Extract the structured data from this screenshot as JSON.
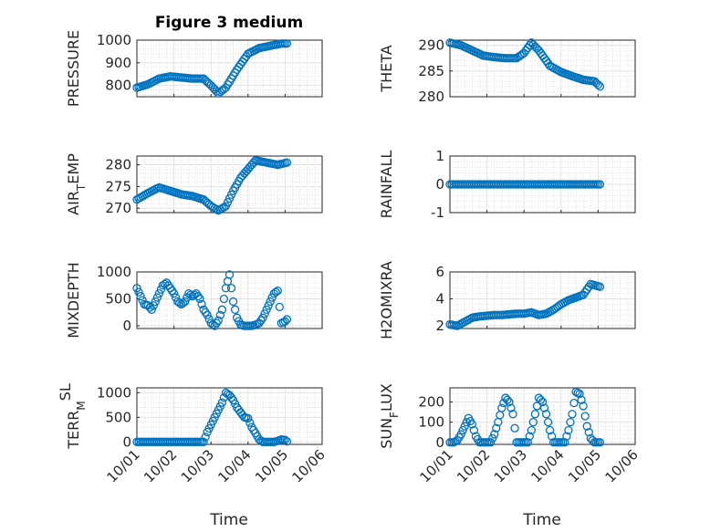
{
  "figure": {
    "title": "Figure 3 medium",
    "xlabel": "Time",
    "x_tick_labels": [
      "10/01",
      "10/02",
      "10/03",
      "10/04",
      "10/05",
      "10/06"
    ],
    "marker_color": "#0072BD",
    "grid_color": "#d9d9d9"
  },
  "chart_data": [
    {
      "type": "scatter",
      "ylabel": "PRESSURE",
      "ylim": [
        750,
        1000
      ],
      "yticks": [
        800,
        900,
        1000
      ],
      "xlim": [
        0,
        5
      ],
      "grid": true,
      "series": [
        {
          "x": [
            0,
            0.3,
            0.6,
            0.9,
            1.2,
            1.5,
            1.8,
            2.0,
            2.2,
            2.4,
            2.7,
            3.0,
            3.3,
            3.6,
            3.9,
            4.05
          ],
          "y": [
            790,
            805,
            830,
            840,
            835,
            830,
            830,
            800,
            765,
            790,
            870,
            940,
            965,
            975,
            985,
            985
          ]
        }
      ]
    },
    {
      "type": "scatter",
      "ylabel": "THETA",
      "ylim": [
        280,
        291
      ],
      "yticks": [
        280,
        285,
        290
      ],
      "xlim": [
        0,
        5
      ],
      "grid": true,
      "series": [
        {
          "x": [
            0,
            0.3,
            0.6,
            0.9,
            1.2,
            1.5,
            1.8,
            2.0,
            2.2,
            2.4,
            2.7,
            3.0,
            3.3,
            3.6,
            3.9,
            4.05
          ],
          "y": [
            290.5,
            290,
            289,
            288,
            287.7,
            287.5,
            287.5,
            288.5,
            290.5,
            289,
            286,
            284.8,
            284,
            283.3,
            283,
            282
          ]
        }
      ]
    },
    {
      "type": "scatter",
      "ylabel": "AIR_TEMP",
      "ylim": [
        269,
        282
      ],
      "yticks": [
        270,
        275,
        280
      ],
      "xlim": [
        0,
        5
      ],
      "grid": true,
      "series": [
        {
          "x": [
            0,
            0.3,
            0.6,
            0.9,
            1.2,
            1.5,
            1.8,
            2.0,
            2.2,
            2.4,
            2.6,
            2.8,
            3.0,
            3.2,
            3.5,
            3.8,
            4.05
          ],
          "y": [
            272,
            273.5,
            274.8,
            274,
            273.2,
            272.8,
            272,
            270.5,
            269.5,
            270.5,
            274,
            277,
            279,
            281,
            280.5,
            280,
            280.5
          ]
        }
      ]
    },
    {
      "type": "scatter",
      "ylabel": "RAINFALL",
      "ylim": [
        -1,
        1
      ],
      "yticks": [
        -1,
        0,
        1
      ],
      "xlim": [
        0,
        5
      ],
      "grid": true,
      "series": [
        {
          "x": [
            0,
            0.5,
            1.0,
            1.5,
            2.0,
            2.5,
            3.0,
            3.5,
            4.05
          ],
          "y": [
            0,
            0,
            0,
            0,
            0,
            0,
            0,
            0,
            0
          ]
        }
      ]
    },
    {
      "type": "scatter",
      "ylabel": "MIXDEPTH",
      "ylim": [
        -50,
        1000
      ],
      "yticks": [
        0,
        500,
        1000
      ],
      "xlim": [
        0,
        5
      ],
      "grid": true,
      "series": [
        {
          "x": [
            0,
            0.1,
            0.2,
            0.3,
            0.4,
            0.5,
            0.6,
            0.7,
            0.8,
            0.9,
            1.0,
            1.1,
            1.2,
            1.3,
            1.4,
            1.5,
            1.6,
            1.7,
            1.8,
            1.9,
            2.0,
            2.1,
            2.2,
            2.3,
            2.4,
            2.5,
            2.6,
            2.7,
            2.8,
            2.9,
            3.0,
            3.1,
            3.2,
            3.3,
            3.4,
            3.5,
            3.6,
            3.7,
            3.8,
            3.9,
            4.0,
            4.05
          ],
          "y": [
            700,
            550,
            400,
            380,
            300,
            450,
            600,
            750,
            800,
            700,
            600,
            450,
            400,
            450,
            600,
            550,
            600,
            500,
            300,
            200,
            50,
            0,
            100,
            300,
            700,
            950,
            450,
            150,
            20,
            0,
            0,
            0,
            20,
            50,
            150,
            300,
            450,
            600,
            650,
            50,
            80,
            120
          ]
        }
      ]
    },
    {
      "type": "scatter",
      "ylabel": "H2OMIXRA",
      "ylim": [
        1.8,
        6
      ],
      "yticks": [
        2,
        4,
        6
      ],
      "xlim": [
        0,
        5
      ],
      "grid": true,
      "series": [
        {
          "x": [
            0,
            0.2,
            0.4,
            0.6,
            0.8,
            1.0,
            1.2,
            1.4,
            1.6,
            1.8,
            2.0,
            2.2,
            2.4,
            2.6,
            2.8,
            3.0,
            3.2,
            3.4,
            3.6,
            3.8,
            4.05
          ],
          "y": [
            2.1,
            2.0,
            2.3,
            2.6,
            2.7,
            2.75,
            2.8,
            2.8,
            2.85,
            2.9,
            2.9,
            3.0,
            2.8,
            2.9,
            3.2,
            3.6,
            3.9,
            4.1,
            4.3,
            5.1,
            4.9
          ]
        }
      ]
    },
    {
      "type": "scatter",
      "ylabel": "TERR_MSL",
      "ylim": [
        -50,
        1100
      ],
      "yticks": [
        0,
        500,
        1000
      ],
      "xlim": [
        0,
        5
      ],
      "grid": true,
      "series": [
        {
          "x": [
            0,
            0.3,
            0.6,
            0.9,
            1.2,
            1.5,
            1.8,
            1.9,
            2.0,
            2.1,
            2.2,
            2.3,
            2.4,
            2.5,
            2.6,
            2.7,
            2.8,
            2.9,
            3.0,
            3.1,
            3.2,
            3.3,
            3.4,
            3.5,
            3.6,
            3.7,
            3.8,
            3.9,
            4.0,
            4.05
          ],
          "y": [
            0,
            0,
            0,
            0,
            0,
            0,
            0,
            200,
            350,
            500,
            650,
            800,
            1000,
            950,
            850,
            700,
            600,
            500,
            480,
            300,
            180,
            50,
            0,
            0,
            0,
            0,
            20,
            50,
            40,
            10
          ]
        }
      ]
    },
    {
      "type": "scatter",
      "ylabel": "SUN_FLUX",
      "ylim": [
        -10,
        270
      ],
      "yticks": [
        0,
        100,
        200
      ],
      "xlim": [
        0,
        5
      ],
      "grid": true,
      "series": [
        {
          "x": [
            0,
            0.1,
            0.2,
            0.3,
            0.4,
            0.5,
            0.6,
            0.7,
            0.8,
            0.9,
            1.0,
            1.1,
            1.2,
            1.3,
            1.4,
            1.5,
            1.6,
            1.7,
            1.8,
            1.9,
            2.0,
            2.1,
            2.2,
            2.3,
            2.4,
            2.5,
            2.6,
            2.7,
            2.8,
            2.9,
            3.0,
            3.1,
            3.2,
            3.3,
            3.4,
            3.5,
            3.6,
            3.7,
            3.8,
            3.9,
            4.0,
            4.05
          ],
          "y": [
            0,
            0,
            10,
            40,
            80,
            120,
            90,
            30,
            0,
            0,
            0,
            0,
            40,
            100,
            170,
            220,
            200,
            140,
            0,
            0,
            0,
            0,
            60,
            140,
            220,
            200,
            140,
            60,
            0,
            0,
            0,
            0,
            60,
            140,
            250,
            240,
            180,
            80,
            20,
            0,
            0,
            0
          ]
        }
      ]
    }
  ]
}
